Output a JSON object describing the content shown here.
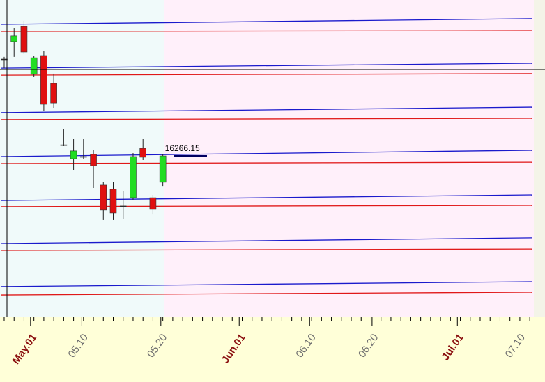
{
  "chart_data": {
    "type": "candlestick",
    "x": [
      0,
      1,
      2,
      3,
      4,
      5,
      6,
      7,
      8,
      9,
      10,
      11,
      12,
      13,
      14,
      15,
      16
    ],
    "open": [
      16711,
      16791,
      16861,
      16641,
      16727,
      16599,
      16317,
      16253,
      16263,
      16273,
      16132,
      16113,
      16036,
      16074,
      16301,
      16074,
      16145
    ],
    "high": [
      16721,
      16855,
      16887,
      16727,
      16749,
      16644,
      16391,
      16343,
      16343,
      16295,
      16145,
      16145,
      16103,
      16279,
      16343,
      16087,
      16273
    ],
    "low": [
      16669,
      16721,
      16733,
      16631,
      16471,
      16487,
      16311,
      16199,
      16253,
      16119,
      15972,
      15972,
      15975,
      16065,
      16247,
      15997,
      16125
    ],
    "close": [
      16711,
      16817,
      16743,
      16717,
      16503,
      16509,
      16317,
      16289,
      16263,
      16221,
      16017,
      16004,
      16036,
      16263,
      16260,
      16020,
      16266.15
    ],
    "up_color": "#22dd22",
    "down_color": "#e01010",
    "lines": [
      {
        "color": "#1a1acc",
        "values": [
          16871,
          16897
        ]
      },
      {
        "color": "#1a1acc",
        "values": [
          16669,
          16692
        ]
      },
      {
        "color": "#1a1acc",
        "values": [
          16465,
          16490
        ]
      },
      {
        "color": "#1a1acc",
        "values": [
          16263,
          16292
        ]
      },
      {
        "color": "#1a1acc",
        "values": [
          16061,
          16087
        ]
      },
      {
        "color": "#1a1acc",
        "values": [
          15863,
          15889
        ]
      },
      {
        "color": "#1a1acc",
        "values": [
          15665,
          15687
        ]
      },
      {
        "color": "#e01818",
        "values": [
          16839,
          16842
        ]
      },
      {
        "color": "#e01818",
        "values": [
          16637,
          16644
        ]
      },
      {
        "color": "#e01818",
        "values": [
          16433,
          16439
        ]
      },
      {
        "color": "#e01818",
        "values": [
          16231,
          16237
        ]
      },
      {
        "color": "#e01818",
        "values": [
          16033,
          16039
        ]
      },
      {
        "color": "#e01818",
        "values": [
          15831,
          15837
        ]
      },
      {
        "color": "#e01818",
        "values": [
          15626,
          15639
        ]
      }
    ],
    "xlim": [
      -0.28,
      53.2
    ],
    "ylim": [
      15527,
      16983
    ],
    "xticks": [
      {
        "value": 2.66,
        "label": "May.01",
        "color": "#8b1010"
      },
      {
        "value": 7.83,
        "label": "05.10",
        "color": "#707070"
      },
      {
        "value": 15.8,
        "label": "05.20",
        "color": "#707070"
      },
      {
        "value": 23.7,
        "label": "Jun.01",
        "color": "#8b1010"
      },
      {
        "value": 30.8,
        "label": "06.10",
        "color": "#707070"
      },
      {
        "value": 37.1,
        "label": "06.20",
        "color": "#707070"
      },
      {
        "value": 45.7,
        "label": "Jul.01",
        "color": "#8b1010"
      },
      {
        "value": 51.9,
        "label": "07.10",
        "color": "#707070"
      }
    ]
  }
}
